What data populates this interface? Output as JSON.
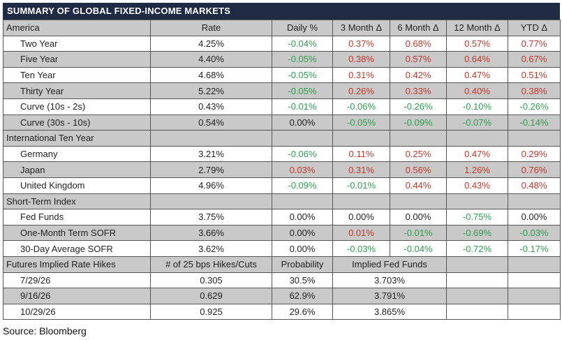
{
  "title": "SUMMARY OF GLOBAL FIXED-INCOME MARKETS",
  "header": [
    "America",
    "Rate",
    "Daily %",
    "3 Month Δ",
    "6 Month Δ",
    "12 Month Δ",
    "YTD Δ"
  ],
  "america": [
    {
      "name": "Two Year",
      "rate": "4.25%",
      "daily": "-0.04%",
      "m3": "0.37%",
      "m6": "0.68%",
      "m12": "0.57%",
      "ytd": "0.77%"
    },
    {
      "name": "Five Year",
      "rate": "4.40%",
      "daily": "-0.05%",
      "m3": "0.38%",
      "m6": "0.57%",
      "m12": "0.64%",
      "ytd": "0.67%"
    },
    {
      "name": "Ten Year",
      "rate": "4.68%",
      "daily": "-0.05%",
      "m3": "0.31%",
      "m6": "0.42%",
      "m12": "0.47%",
      "ytd": "0.51%"
    },
    {
      "name": "Thirty Year",
      "rate": "5.22%",
      "daily": "-0.05%",
      "m3": "0.26%",
      "m6": "0.33%",
      "m12": "0.40%",
      "ytd": "0.38%"
    },
    {
      "name": "Curve (10s - 2s)",
      "rate": "0.43%",
      "daily": "-0.01%",
      "m3": "-0.06%",
      "m6": "-0.26%",
      "m12": "-0.10%",
      "ytd": "-0.26%"
    },
    {
      "name": "Curve (30s - 10s)",
      "rate": "0.54%",
      "daily": "0.00%",
      "m3": "-0.05%",
      "m6": "-0.09%",
      "m12": "-0.07%",
      "ytd": "-0.14%"
    }
  ],
  "international_label": "International Ten Year",
  "international": [
    {
      "name": "Germany",
      "rate": "3.21%",
      "daily": "-0.06%",
      "m3": "0.11%",
      "m6": "0.25%",
      "m12": "0.47%",
      "ytd": "0.29%"
    },
    {
      "name": "Japan",
      "rate": "2.79%",
      "daily": "0.03%",
      "m3": "0.31%",
      "m6": "0.56%",
      "m12": "1.26%",
      "ytd": "0.76%"
    },
    {
      "name": "United Kingdom",
      "rate": "4.96%",
      "daily": "-0.09%",
      "m3": "-0.01%",
      "m6": "0.44%",
      "m12": "0.43%",
      "ytd": "0.48%"
    }
  ],
  "short_term_label": "Short-Term Index",
  "short_term": [
    {
      "name": "Fed Funds",
      "rate": "3.75%",
      "daily": "0.00%",
      "m3": "0.00%",
      "m6": "0.00%",
      "m12": "-0.75%",
      "ytd": "0.00%"
    },
    {
      "name": "One-Month Term SOFR",
      "rate": "3.66%",
      "daily": "0.00%",
      "m3": "0.01%",
      "m6": "-0.01%",
      "m12": "-0.69%",
      "ytd": "-0.03%"
    },
    {
      "name": "30-Day Average SOFR",
      "rate": "3.62%",
      "daily": "0.00%",
      "m3": "-0.03%",
      "m6": "-0.04%",
      "m12": "-0.72%",
      "ytd": "-0.17%"
    }
  ],
  "futures_header": [
    "Futures Implied Rate Hikes",
    "# of 25 bps Hikes/Cuts",
    "Probability",
    "Implied Fed Funds"
  ],
  "futures": [
    {
      "date": "7/29/26",
      "hikes": "0.305",
      "prob": "30.5%",
      "implied": "3.703%"
    },
    {
      "date": "9/16/26",
      "hikes": "0.629",
      "prob": "62.9%",
      "implied": "3.791%"
    },
    {
      "date": "10/29/26",
      "hikes": "0.925",
      "prob": "29.6%",
      "implied": "3.865%"
    }
  ],
  "source": "Source: Bloomberg",
  "colors": {
    "positive": "#c0392b",
    "negative": "#2e9e4f",
    "title_bg": "#1f2a44",
    "grey_row": "#c9c9c9"
  }
}
